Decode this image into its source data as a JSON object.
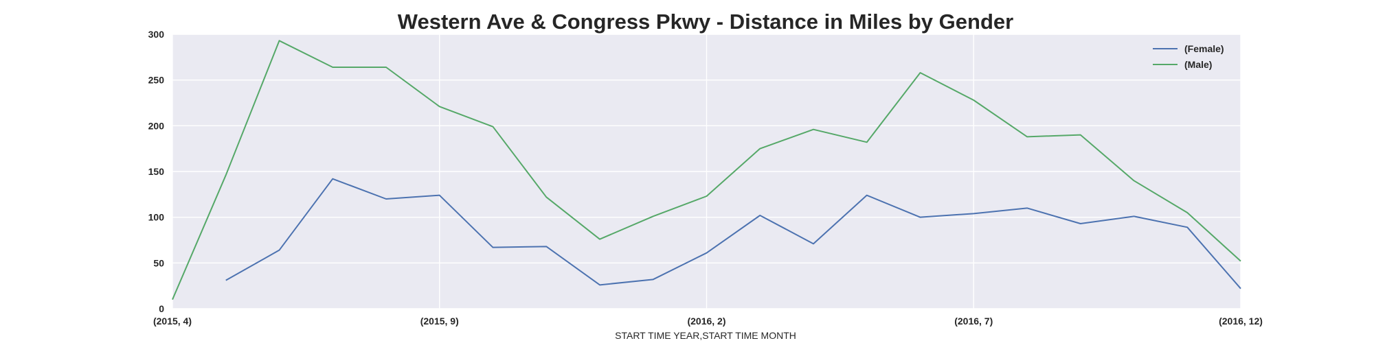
{
  "chart_data": {
    "type": "line",
    "title": "Western Ave & Congress Pkwy - Distance in Miles by Gender",
    "xlabel": "START TIME YEAR,START TIME MONTH",
    "ylabel": "",
    "x": [
      "(2015, 4)",
      "(2015, 5)",
      "(2015, 6)",
      "(2015, 7)",
      "(2015, 8)",
      "(2015, 9)",
      "(2015, 10)",
      "(2015, 11)",
      "(2015, 12)",
      "(2016, 1)",
      "(2016, 2)",
      "(2016, 3)",
      "(2016, 4)",
      "(2016, 5)",
      "(2016, 6)",
      "(2016, 7)",
      "(2016, 8)",
      "(2016, 9)",
      "(2016, 10)",
      "(2016, 11)",
      "(2016, 12)"
    ],
    "xticks": [
      "(2015, 4)",
      "(2015, 9)",
      "(2016, 2)",
      "(2016, 7)",
      "(2016, 12)"
    ],
    "ylim": [
      0,
      300
    ],
    "yticks": [
      0,
      50,
      100,
      150,
      200,
      250,
      300
    ],
    "grid": true,
    "legend_position": "top-right",
    "series": [
      {
        "name": "(Female)",
        "color": "#4c72b0",
        "values": [
          null,
          31,
          64,
          142,
          120,
          124,
          67,
          68,
          26,
          32,
          61,
          102,
          71,
          124,
          100,
          104,
          110,
          93,
          101,
          89,
          22
        ]
      },
      {
        "name": "(Male)",
        "color": "#55a868",
        "values": [
          10,
          146,
          293,
          264,
          264,
          221,
          199,
          122,
          76,
          101,
          123,
          175,
          196,
          182,
          258,
          228,
          188,
          190,
          140,
          105,
          52
        ]
      }
    ]
  }
}
